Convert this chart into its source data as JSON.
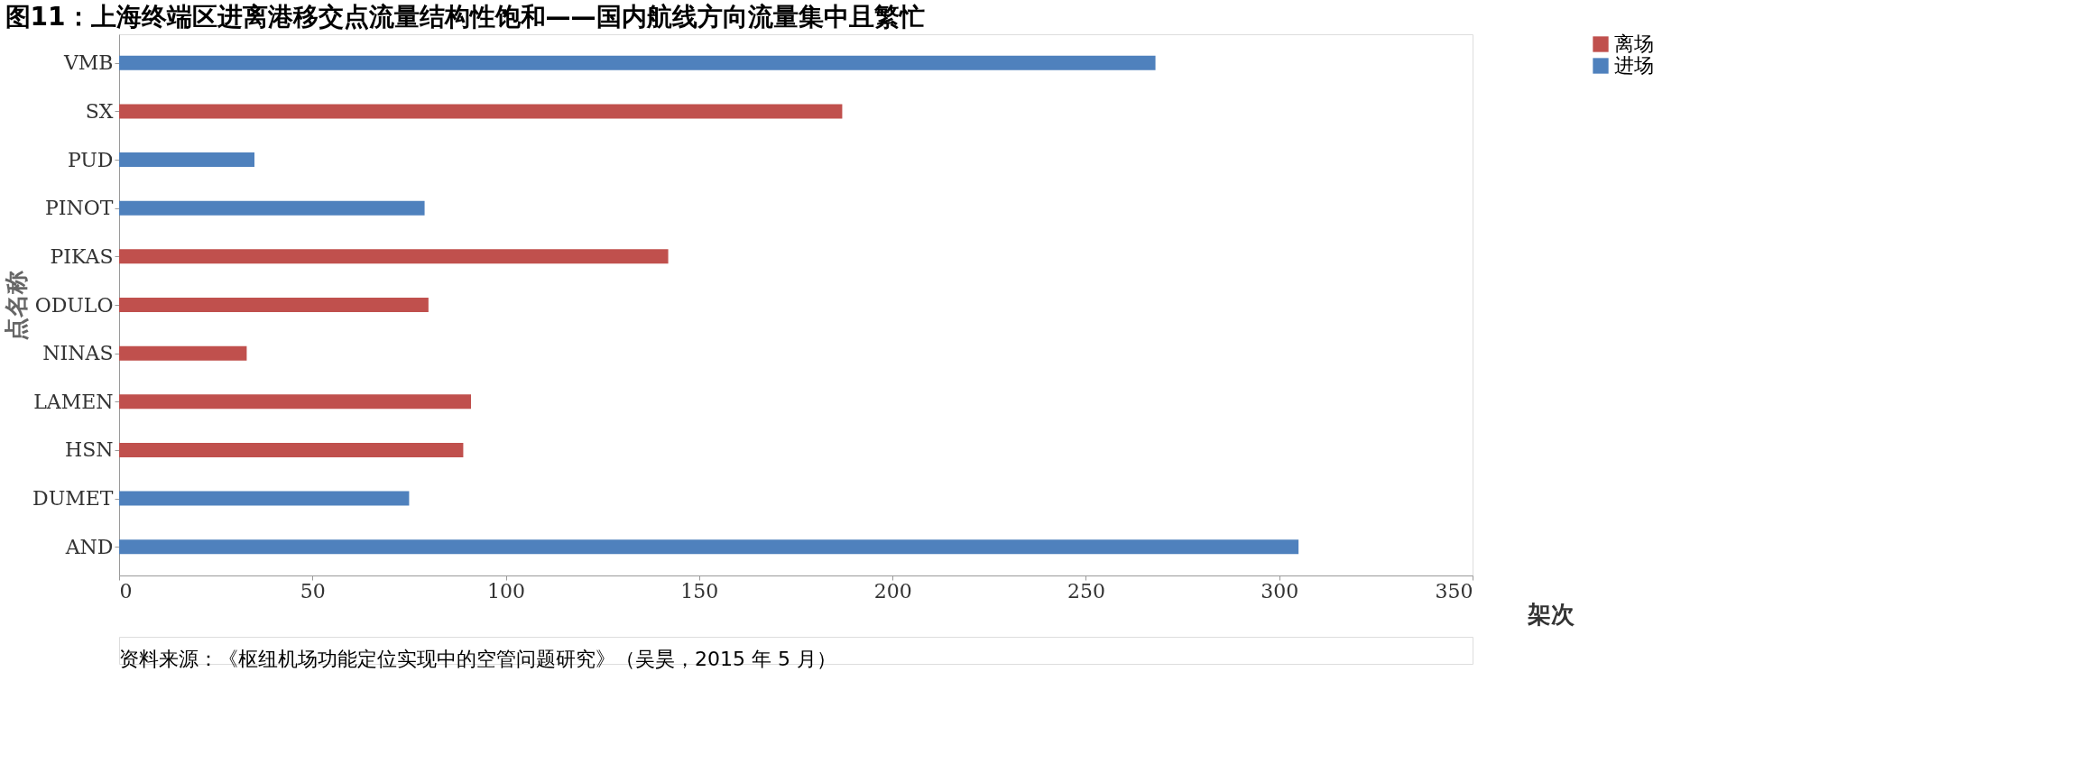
{
  "chart_data": {
    "type": "bar",
    "orientation": "horizontal",
    "title": "图11：上海终端区进离港移交点流量结构性饱和——国内航线方向流量集中且繁忙",
    "categories": [
      "VMB",
      "SX",
      "PUD",
      "PINOT",
      "PIKAS",
      "ODULO",
      "NINAS",
      "LAMEN",
      "HSN",
      "DUMET",
      "AND"
    ],
    "series": [
      {
        "name": "离场",
        "color": "#c0504d",
        "values": [
          null,
          187,
          null,
          null,
          142,
          80,
          33,
          91,
          89,
          null,
          null
        ]
      },
      {
        "name": "进场",
        "color": "#4f81bd",
        "values": [
          268,
          null,
          35,
          79,
          null,
          null,
          null,
          null,
          null,
          75,
          305
        ]
      }
    ],
    "xlim": [
      0,
      350
    ],
    "xticks": [
      0,
      50,
      100,
      150,
      200,
      250,
      300,
      350
    ],
    "xlabel": "架次",
    "ylabel": "点名称",
    "legend": "right",
    "grid": false,
    "annotations": [
      "资料来源：《枢纽机场功能定位实现中的空管问题研究》（吴昊，2015 年 5 月）"
    ]
  }
}
